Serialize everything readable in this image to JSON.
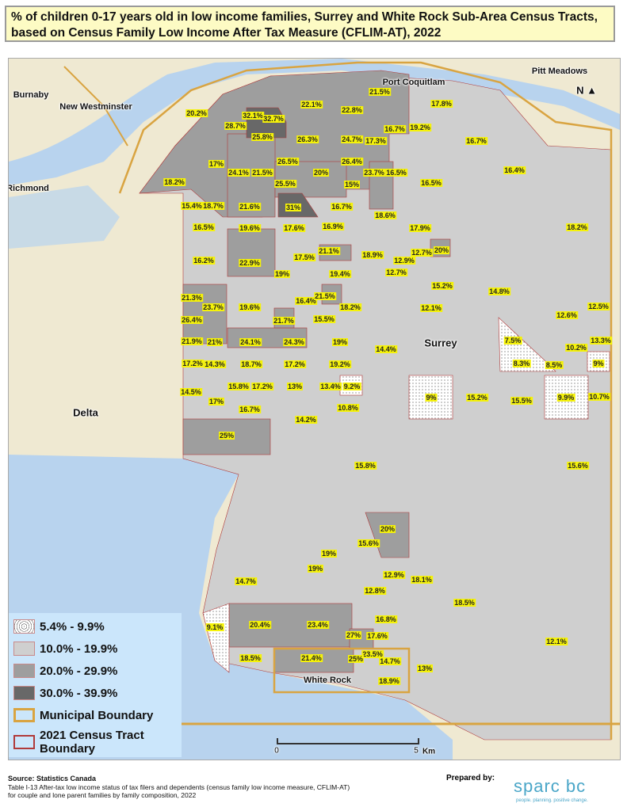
{
  "title": "% of children 0-17 years old in low income families, Surrey and White Rock Sub-Area Census Tracts, based on Census Family Low Income After Tax Measure (CFLIM-AT), 2022",
  "colors": {
    "class_1": "#ffffff",
    "class_2": "#cfcfcf",
    "class_3": "#9e9e9e",
    "class_4": "#686868",
    "municipal_boundary": "#d9a441",
    "tract_boundary": "#b03a3a",
    "label_bg": "#f5f20a",
    "water": "#b8d3ee"
  },
  "places": [
    "Burnaby",
    "New Westminster",
    "Port Coquitlam",
    "Pitt Meadows",
    "Richmond",
    "Delta",
    "Surrey",
    "White Rock"
  ],
  "north_arrow": "N",
  "tract_labels": [
    "20.2%",
    "28.7%",
    "32.1%",
    "32.7%",
    "22.1%",
    "22.8%",
    "21.5%",
    "17.8%",
    "16.7%",
    "19.2%",
    "25.8%",
    "26.3%",
    "24.7%",
    "17.3%",
    "16.7%",
    "17%",
    "24.1%",
    "21.5%",
    "26.5%",
    "20%",
    "26.4%",
    "23.7%",
    "16.5%",
    "25.5%",
    "15%",
    "18.2%",
    "16.5%",
    "16.4%",
    "15.4%",
    "18.7%",
    "21.6%",
    "31%",
    "16.7%",
    "18.6%",
    "16.5%",
    "19.6%",
    "17.6%",
    "16.9%",
    "17.9%",
    "18.2%",
    "21.1%",
    "18.9%",
    "12.9%",
    "12.7%",
    "20%",
    "16.2%",
    "22.9%",
    "17.5%",
    "19%",
    "19.4%",
    "12.7%",
    "15.2%",
    "21.3%",
    "23.7%",
    "19.6%",
    "16.4%",
    "21.5%",
    "18.2%",
    "12.1%",
    "14.8%",
    "12.6%",
    "12.5%",
    "26.4%",
    "21.7%",
    "15.5%",
    "21.9%",
    "21%",
    "24.1%",
    "24.3%",
    "19%",
    "14.4%",
    "7.5%",
    "10.2%",
    "13.3%",
    "8.3%",
    "8.5%",
    "9%",
    "17.2%",
    "14.3%",
    "18.7%",
    "17.2%",
    "19.2%",
    "14.5%",
    "15.8%",
    "17.2%",
    "13%",
    "13.4%",
    "9.2%",
    "9%",
    "15.2%",
    "15.5%",
    "9.9%",
    "10.7%",
    "17%",
    "16.7%",
    "10.8%",
    "14.2%",
    "25%",
    "15.8%",
    "15.6%",
    "20%",
    "15.6%",
    "19%",
    "19%",
    "14.7%",
    "12.9%",
    "18.1%",
    "12.8%",
    "18.5%",
    "16.8%",
    "9.1%",
    "20.4%",
    "23.4%",
    "27%",
    "17.6%",
    "12.1%",
    "23.5%",
    "18.5%",
    "21.4%",
    "25%",
    "14.7%",
    "13%",
    "18.9%"
  ],
  "legend": [
    {
      "label": "5.4% - 9.9%",
      "pattern": "dots"
    },
    {
      "label": "10.0% - 19.9%",
      "color": "#cfcfcf"
    },
    {
      "label": "20.0% - 29.9%",
      "color": "#9e9e9e"
    },
    {
      "label": "30.0% - 39.9%",
      "color": "#686868"
    },
    {
      "label": "Municipal Boundary",
      "color": "#d9a441"
    },
    {
      "label": "2021 Census Tract Boundary",
      "color": "#b03a3a"
    }
  ],
  "scale": {
    "start": "0",
    "end": "5",
    "unit": "Km"
  },
  "footer": {
    "source": "Source: Statistics Canada",
    "line1": "Table I-13 After-tax low income status of tax filers and dependents (census family low income measure, CFLIM-AT)",
    "line2": "for couple and lone parent families by family composition, 2022",
    "prepared_by": "Prepared by:",
    "logo": "sparc bc",
    "tagline": "people. planning. positive change."
  }
}
